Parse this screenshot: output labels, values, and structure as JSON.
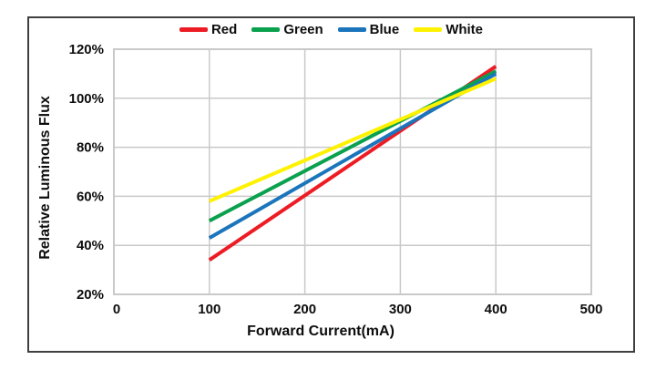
{
  "figure": {
    "background_color": "#ffffff",
    "border_color": "#3f3f3f",
    "gridline_color": "#c9c9c9",
    "text_color": "#0d0d0d"
  },
  "chart_data": {
    "type": "line",
    "title": "",
    "xlabel": "Forward Current(mA)",
    "ylabel": "Relative Luminous Flux",
    "xlim": [
      0,
      500
    ],
    "ylim": [
      20,
      120
    ],
    "x_ticks": [
      0,
      100,
      200,
      300,
      400,
      500
    ],
    "x_tick_labels": [
      "0",
      "100",
      "200",
      "300",
      "400",
      "500"
    ],
    "y_ticks": [
      20,
      40,
      60,
      80,
      100,
      120
    ],
    "y_tick_labels": [
      "20%",
      "40%",
      "60%",
      "80%",
      "100%",
      "120%"
    ],
    "grid": true,
    "legend_position": "top-center",
    "series": [
      {
        "name": "Red",
        "color": "#ed1c24",
        "x": [
          100,
          400
        ],
        "values": [
          34,
          113
        ]
      },
      {
        "name": "Green",
        "color": "#0aa14e",
        "x": [
          100,
          400
        ],
        "values": [
          50,
          111
        ]
      },
      {
        "name": "Blue",
        "color": "#1b75bc",
        "x": [
          100,
          400
        ],
        "values": [
          43,
          110
        ]
      },
      {
        "name": "White",
        "color": "#fff200",
        "x": [
          100,
          400
        ],
        "values": [
          58,
          108
        ]
      }
    ],
    "annotations": {
      "crossover_point": {
        "x": 350,
        "y": 100,
        "note": "all four lines intersect near 350 mA at 100%"
      }
    }
  }
}
